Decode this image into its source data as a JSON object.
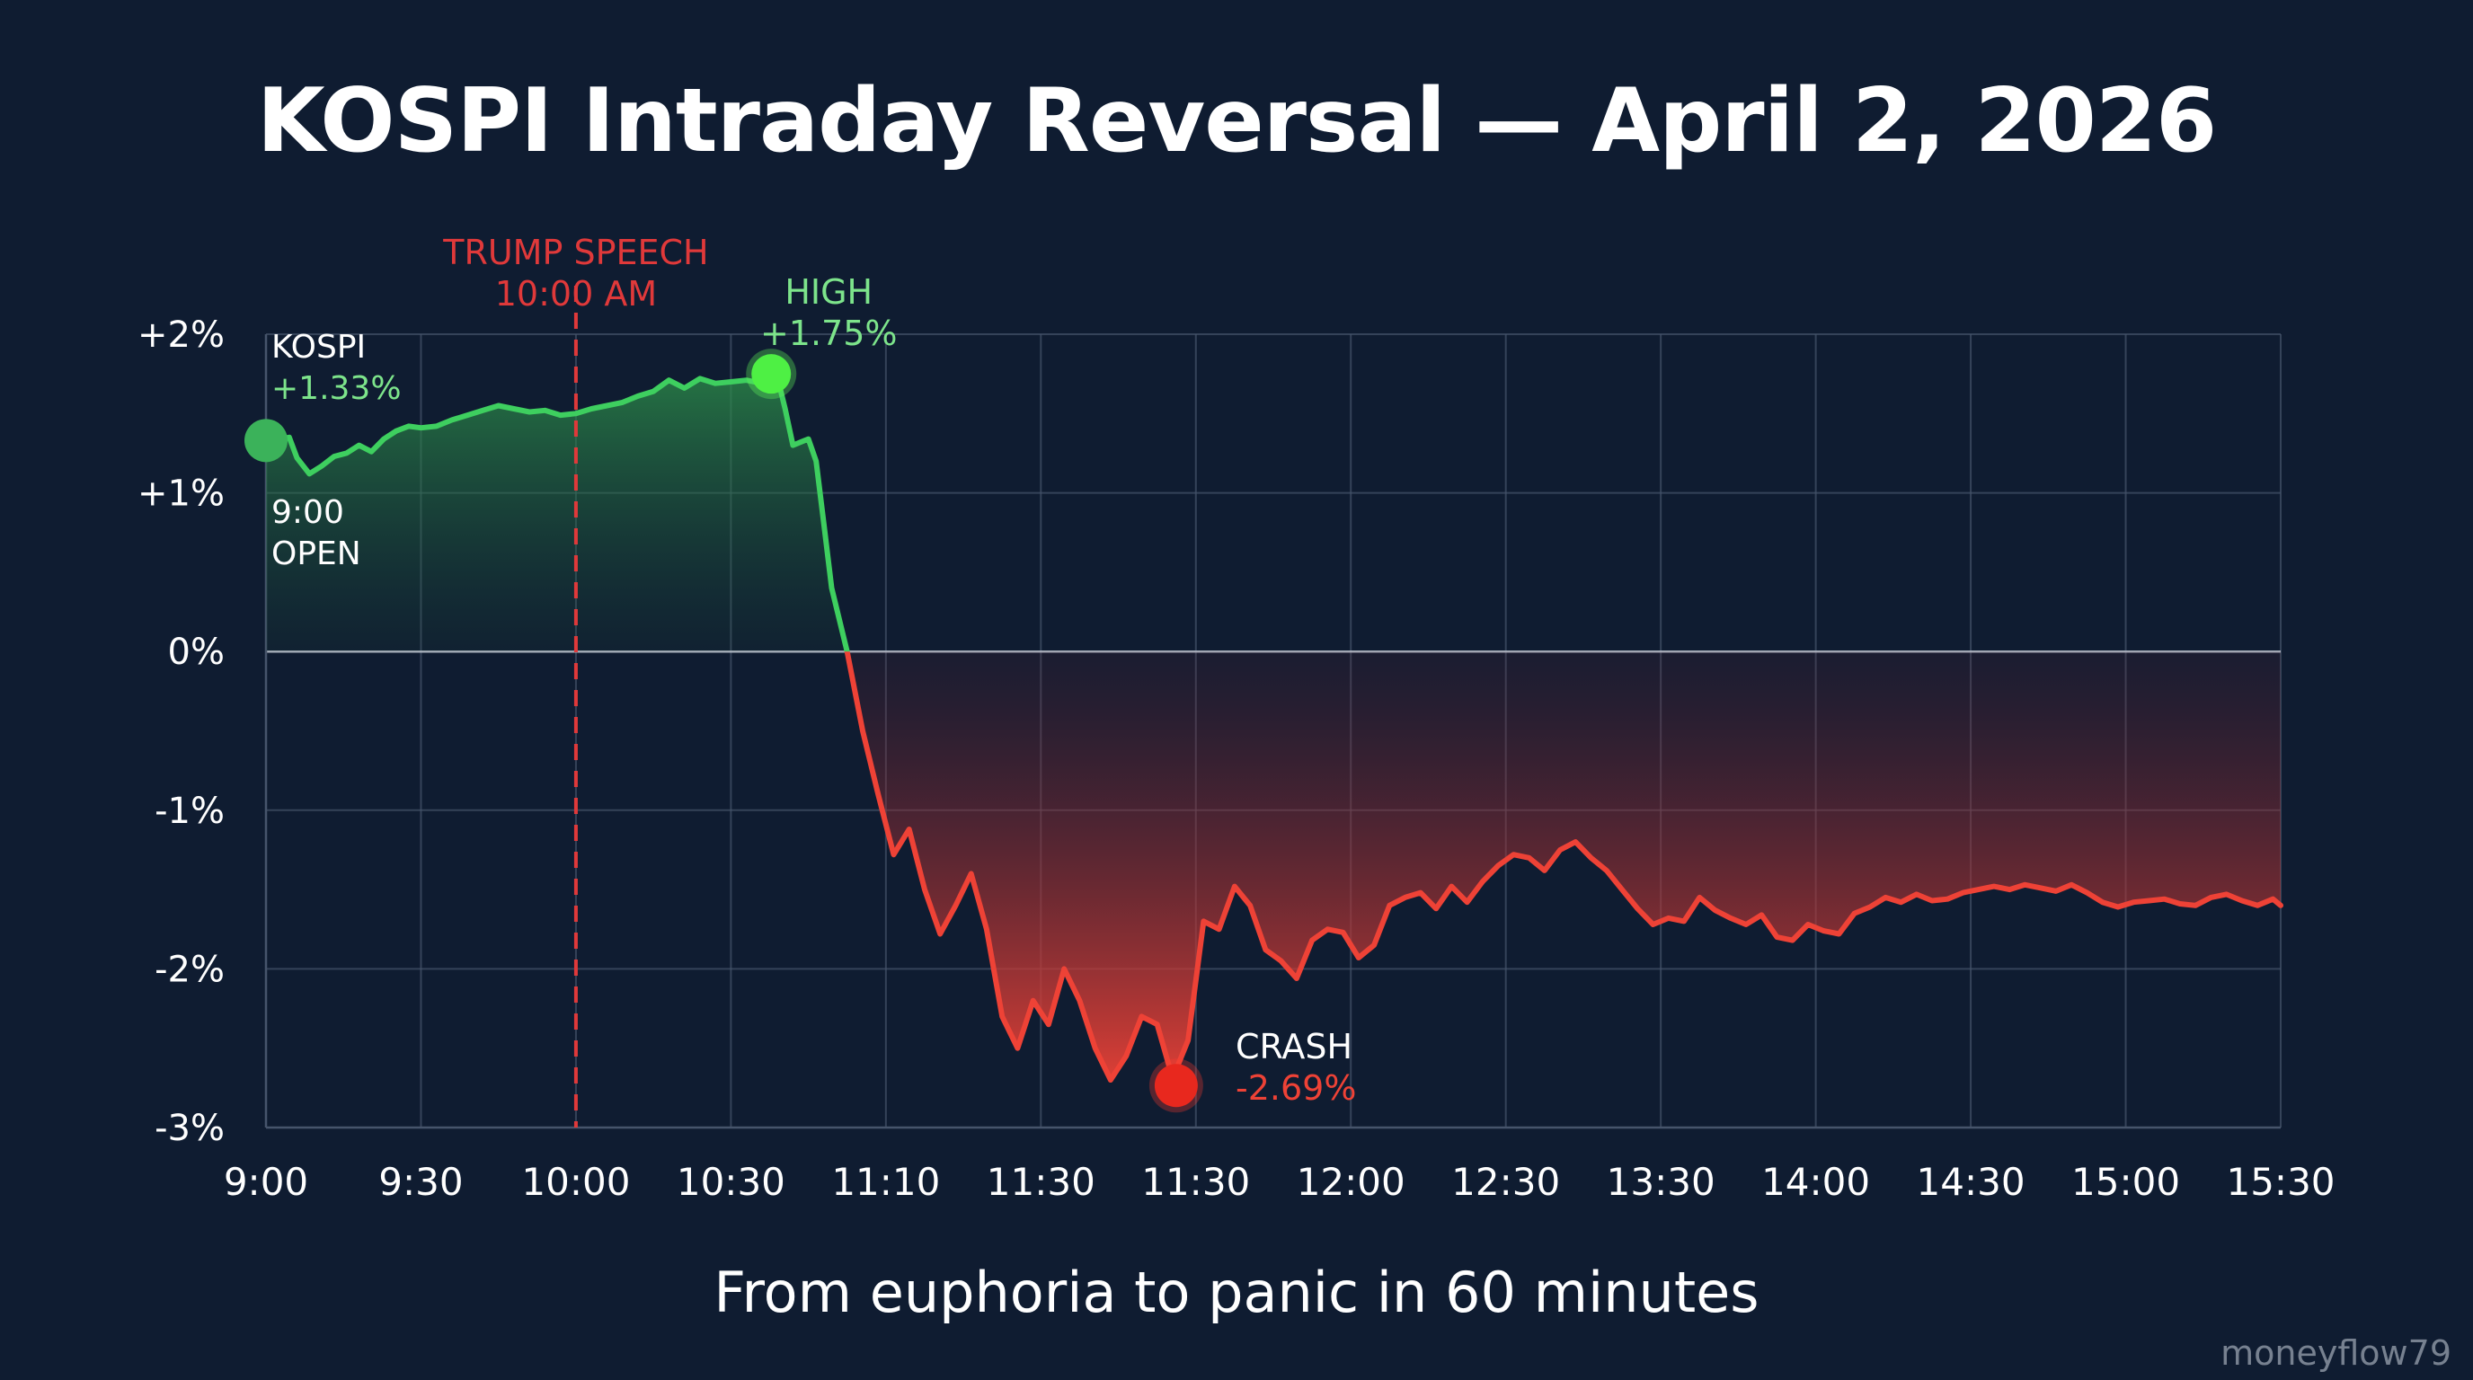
{
  "title": "KOSPI Intraday Reversal — April 2, 2026",
  "subtitle": "From euphoria to panic in 60 minutes",
  "watermark": "moneyflow79",
  "colors": {
    "background": "#0f1c31",
    "grid": "#46546b",
    "zero_line": "#b8c0cc",
    "positive_line": "#3ecf5f",
    "negative_line": "#ee4236",
    "speech_marker": "#e0393a",
    "high_label": "#7de48b",
    "crash_label": "#ee4236"
  },
  "annotations": {
    "open_name": "KOSPI",
    "open_value": "+1.33%",
    "open_time": "9:00",
    "open_word": "OPEN",
    "speech_line1": "TRUMP SPEECH",
    "speech_line2": "10:00 AM",
    "high_word": "HIGH",
    "high_value": "+1.75%",
    "crash_word": "CRASH",
    "crash_value": "-2.69%"
  },
  "chart_data": {
    "type": "line",
    "title": "KOSPI Intraday Reversal — April 2, 2026",
    "subtitle": "From euphoria to panic in 60 minutes",
    "series_name": "KOSPI",
    "x_tick_labels": [
      "9:00",
      "9:30",
      "10:00",
      "10:30",
      "11:10",
      "11:30",
      "11:30",
      "12:00",
      "12:30",
      "13:30",
      "14:00",
      "14:30",
      "15:00",
      "15:30"
    ],
    "y_tick_labels": [
      "+2%",
      "+1%",
      "0%",
      "-1%",
      "-2%",
      "-3%"
    ],
    "y_tick_values": [
      2,
      1,
      0,
      -1,
      -2,
      -3
    ],
    "ylim": [
      -3,
      2
    ],
    "grid": true,
    "fill": "green above zero, red below zero",
    "speech_marker_tick": 2,
    "points": [
      [
        0.0,
        1.33
      ],
      [
        0.15,
        1.35
      ],
      [
        0.2,
        1.22
      ],
      [
        0.28,
        1.12
      ],
      [
        0.36,
        1.17
      ],
      [
        0.44,
        1.23
      ],
      [
        0.52,
        1.25
      ],
      [
        0.6,
        1.3
      ],
      [
        0.68,
        1.26
      ],
      [
        0.76,
        1.34
      ],
      [
        0.84,
        1.39
      ],
      [
        0.92,
        1.42
      ],
      [
        1.0,
        1.41
      ],
      [
        1.1,
        1.42
      ],
      [
        1.2,
        1.46
      ],
      [
        1.3,
        1.49
      ],
      [
        1.4,
        1.52
      ],
      [
        1.5,
        1.55
      ],
      [
        1.6,
        1.53
      ],
      [
        1.7,
        1.51
      ],
      [
        1.8,
        1.52
      ],
      [
        1.9,
        1.49
      ],
      [
        2.0,
        1.5
      ],
      [
        2.1,
        1.53
      ],
      [
        2.2,
        1.55
      ],
      [
        2.3,
        1.57
      ],
      [
        2.4,
        1.61
      ],
      [
        2.5,
        1.64
      ],
      [
        2.6,
        1.71
      ],
      [
        2.7,
        1.66
      ],
      [
        2.8,
        1.72
      ],
      [
        2.9,
        1.69
      ],
      [
        3.0,
        1.7
      ],
      [
        3.1,
        1.71
      ],
      [
        3.2,
        1.69
      ],
      [
        3.26,
        1.75
      ],
      [
        3.3,
        1.73
      ],
      [
        3.35,
        1.53
      ],
      [
        3.4,
        1.3
      ],
      [
        3.5,
        1.34
      ],
      [
        3.55,
        1.2
      ],
      [
        3.6,
        0.8
      ],
      [
        3.65,
        0.4
      ],
      [
        3.75,
        0.0
      ],
      [
        3.85,
        -0.5
      ],
      [
        3.95,
        -0.9
      ],
      [
        4.05,
        -1.28
      ],
      [
        4.15,
        -1.12
      ],
      [
        4.25,
        -1.5
      ],
      [
        4.35,
        -1.78
      ],
      [
        4.45,
        -1.6
      ],
      [
        4.55,
        -1.4
      ],
      [
        4.65,
        -1.75
      ],
      [
        4.75,
        -2.3
      ],
      [
        4.85,
        -2.5
      ],
      [
        4.95,
        -2.2
      ],
      [
        5.05,
        -2.35
      ],
      [
        5.15,
        -2.0
      ],
      [
        5.25,
        -2.2
      ],
      [
        5.35,
        -2.5
      ],
      [
        5.45,
        -2.7
      ],
      [
        5.55,
        -2.55
      ],
      [
        5.65,
        -2.3
      ],
      [
        5.75,
        -2.35
      ],
      [
        5.85,
        -2.69
      ],
      [
        5.95,
        -2.45
      ],
      [
        6.05,
        -1.7
      ],
      [
        6.15,
        -1.75
      ],
      [
        6.25,
        -1.48
      ],
      [
        6.35,
        -1.6
      ],
      [
        6.45,
        -1.88
      ],
      [
        6.55,
        -1.95
      ],
      [
        6.65,
        -2.06
      ],
      [
        6.75,
        -1.82
      ],
      [
        6.85,
        -1.75
      ],
      [
        6.95,
        -1.77
      ],
      [
        7.05,
        -1.93
      ],
      [
        7.15,
        -1.85
      ],
      [
        7.25,
        -1.6
      ],
      [
        7.35,
        -1.55
      ],
      [
        7.45,
        -1.52
      ],
      [
        7.55,
        -1.62
      ],
      [
        7.65,
        -1.48
      ],
      [
        7.75,
        -1.58
      ],
      [
        7.85,
        -1.45
      ],
      [
        7.95,
        -1.35
      ],
      [
        8.05,
        -1.28
      ],
      [
        8.15,
        -1.3
      ],
      [
        8.25,
        -1.38
      ],
      [
        8.35,
        -1.25
      ],
      [
        8.45,
        -1.2
      ],
      [
        8.55,
        -1.3
      ],
      [
        8.65,
        -1.38
      ],
      [
        8.75,
        -1.5
      ],
      [
        8.85,
        -1.62
      ],
      [
        8.95,
        -1.72
      ],
      [
        9.05,
        -1.68
      ],
      [
        9.15,
        -1.7
      ],
      [
        9.25,
        -1.55
      ],
      [
        9.35,
        -1.63
      ],
      [
        9.45,
        -1.68
      ],
      [
        9.55,
        -1.72
      ],
      [
        9.65,
        -1.66
      ],
      [
        9.75,
        -1.8
      ],
      [
        9.85,
        -1.82
      ],
      [
        9.95,
        -1.72
      ],
      [
        10.05,
        -1.76
      ],
      [
        10.15,
        -1.78
      ],
      [
        10.25,
        -1.65
      ],
      [
        10.35,
        -1.61
      ],
      [
        10.45,
        -1.55
      ],
      [
        10.55,
        -1.58
      ],
      [
        10.65,
        -1.53
      ],
      [
        10.75,
        -1.57
      ],
      [
        10.85,
        -1.56
      ],
      [
        10.95,
        -1.52
      ],
      [
        11.05,
        -1.5
      ],
      [
        11.15,
        -1.48
      ],
      [
        11.25,
        -1.5
      ],
      [
        11.35,
        -1.47
      ],
      [
        11.45,
        -1.49
      ],
      [
        11.55,
        -1.51
      ],
      [
        11.65,
        -1.47
      ],
      [
        11.75,
        -1.52
      ],
      [
        11.85,
        -1.58
      ],
      [
        11.95,
        -1.61
      ],
      [
        12.05,
        -1.58
      ],
      [
        12.15,
        -1.57
      ],
      [
        12.25,
        -1.56
      ],
      [
        12.35,
        -1.59
      ],
      [
        12.45,
        -1.6
      ],
      [
        12.55,
        -1.55
      ],
      [
        12.65,
        -1.53
      ],
      [
        12.75,
        -1.57
      ],
      [
        12.85,
        -1.6
      ],
      [
        12.95,
        -1.56
      ],
      [
        13.0,
        -1.6
      ]
    ],
    "highlights": {
      "open": [
        0.0,
        1.33
      ],
      "high": [
        3.26,
        1.75
      ],
      "crash": [
        5.85,
        -2.69
      ]
    }
  }
}
